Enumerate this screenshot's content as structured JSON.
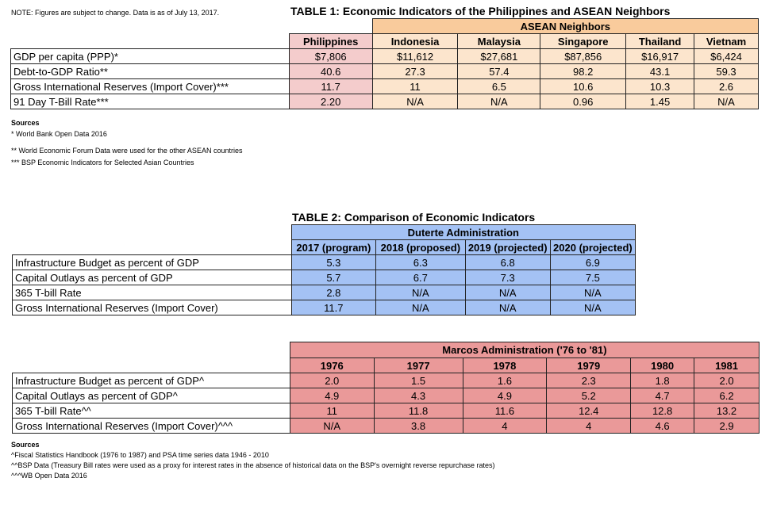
{
  "note": "NOTE: Figures are subject to change. Data is as of July 13, 2017.",
  "table1": {
    "title": "TABLE 1: Economic Indicators of the Philippines and ASEAN Neighbors",
    "group_label": "ASEAN Neighbors",
    "columns": [
      "Philippines",
      "Indonesia",
      "Malaysia",
      "Singapore",
      "Thailand",
      "Vietnam"
    ],
    "rows": [
      {
        "label": "GDP per capita (PPP)*",
        "values": [
          "$7,806",
          "$11,612",
          "$27,681",
          "$87,856",
          "$16,917",
          "$6,424"
        ]
      },
      {
        "label": "Debt-to-GDP Ratio**",
        "values": [
          "40.6",
          "27.3",
          "57.4",
          "98.2",
          "43.1",
          "59.3"
        ]
      },
      {
        "label": "Gross International Reserves (Import Cover)***",
        "values": [
          "11.7",
          "11",
          "6.5",
          "10.6",
          "10.3",
          "2.6"
        ]
      },
      {
        "label": "91 Day T-Bill Rate***",
        "values": [
          "2.20",
          "N/A",
          "N/A",
          "0.96",
          "1.45",
          "N/A"
        ]
      }
    ]
  },
  "sources1": {
    "heading": "Sources",
    "lines": [
      "* World Bank Open Data 2016",
      "** World Economic Forum Data were used for the other ASEAN countries",
      "*** BSP Economic Indicators for Selected Asian Countries"
    ]
  },
  "table2": {
    "title": "TABLE 2: Comparison of Economic Indicators",
    "group_label": "Duterte Administration",
    "columns": [
      "2017 (program)",
      "2018 (proposed)",
      "2019 (projected)",
      "2020 (projected)"
    ],
    "rows": [
      {
        "label": "Infrastructure Budget as percent of GDP",
        "values": [
          "5.3",
          "6.3",
          "6.8",
          "6.9"
        ]
      },
      {
        "label": "Capital Outlays as percent of GDP",
        "values": [
          "5.7",
          "6.7",
          "7.3",
          "7.5"
        ]
      },
      {
        "label": "365 T-bill Rate",
        "values": [
          "2.8",
          "N/A",
          "N/A",
          "N/A"
        ]
      },
      {
        "label": "Gross International Reserves (Import Cover)",
        "values": [
          "11.7",
          "N/A",
          "N/A",
          "N/A"
        ]
      }
    ]
  },
  "table3": {
    "group_label": "Marcos Administration ('76 to '81)",
    "columns": [
      "1976",
      "1977",
      "1978",
      "1979",
      "1980",
      "1981"
    ],
    "rows": [
      {
        "label": "Infrastructure Budget as percent of GDP^",
        "values": [
          "2.0",
          "1.5",
          "1.6",
          "2.3",
          "1.8",
          "2.0"
        ]
      },
      {
        "label": "Capital Outlays as percent of GDP^",
        "values": [
          "4.9",
          "4.3",
          "4.9",
          "5.2",
          "4.7",
          "6.2"
        ]
      },
      {
        "label": "365 T-bill Rate^^",
        "values": [
          "11",
          "11.8",
          "11.6",
          "12.4",
          "12.8",
          "13.2"
        ]
      },
      {
        "label": "Gross International Reserves (Import Cover)^^^",
        "values": [
          "N/A",
          "3.8",
          "4",
          "4",
          "4.6",
          "2.9"
        ]
      }
    ]
  },
  "sources2": {
    "heading": "Sources",
    "lines": [
      "^Fiscal Statistics Handbook (1976 to 1987) and PSA time series data 1946 - 2010",
      "^^BSP Data (Treasury Bill rates were used as a proxy for interest rates in the absence of historical data on the BSP's overnight reverse repurchase rates)",
      "^^^WB Open Data 2016"
    ]
  }
}
